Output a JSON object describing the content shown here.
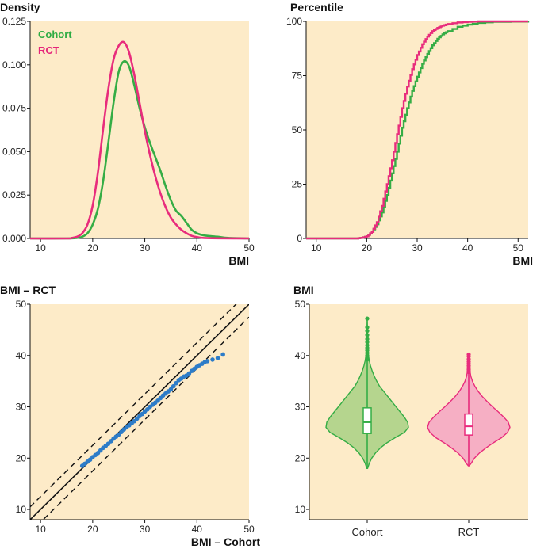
{
  "colors": {
    "cohort": "#35ad45",
    "rct": "#e82c7c",
    "panel_bg": "#fdebc8",
    "qq_points": "#2d7cc8",
    "axis": "#111111"
  },
  "chart_data": [
    {
      "type": "line",
      "title": "Density",
      "xlabel": "BMI",
      "xlim": [
        8,
        50
      ],
      "ylim": [
        0,
        0.125
      ],
      "xticks": [
        "10",
        "20",
        "30",
        "40",
        "50"
      ],
      "yticks": [
        "0.000",
        "0.025",
        "0.050",
        "0.075",
        "0.100",
        "0.125"
      ],
      "legend": [
        "Cohort",
        "RCT"
      ],
      "legend_position": "top-left",
      "series": [
        {
          "name": "Cohort",
          "x": [
            8,
            15,
            17,
            18,
            19,
            20,
            21,
            22,
            23,
            24,
            25,
            26,
            27,
            28,
            29,
            30,
            31,
            32,
            33,
            34,
            35,
            36,
            37,
            38,
            39,
            40,
            41,
            42,
            44,
            46,
            50
          ],
          "y": [
            0,
            0,
            0.0003,
            0.001,
            0.003,
            0.008,
            0.017,
            0.033,
            0.055,
            0.078,
            0.096,
            0.102,
            0.099,
            0.088,
            0.075,
            0.064,
            0.055,
            0.047,
            0.039,
            0.03,
            0.022,
            0.016,
            0.013,
            0.009,
            0.005,
            0.003,
            0.002,
            0.0015,
            0.001,
            0.0003,
            0
          ]
        },
        {
          "name": "RCT",
          "x": [
            8,
            15,
            16,
            17,
            18,
            19,
            20,
            21,
            22,
            23,
            24,
            25,
            26,
            27,
            28,
            29,
            30,
            31,
            32,
            33,
            34,
            35,
            36,
            37,
            38,
            39,
            40,
            42,
            50
          ],
          "y": [
            0,
            0,
            0.0003,
            0.001,
            0.003,
            0.008,
            0.019,
            0.038,
            0.063,
            0.086,
            0.103,
            0.111,
            0.113,
            0.107,
            0.094,
            0.078,
            0.062,
            0.048,
            0.036,
            0.026,
            0.018,
            0.012,
            0.008,
            0.005,
            0.003,
            0.0015,
            0.0008,
            0.0002,
            0
          ]
        }
      ]
    },
    {
      "type": "line",
      "title": "Percentile",
      "xlabel": "BMI",
      "xlim": [
        8,
        52
      ],
      "ylim": [
        0,
        100
      ],
      "xticks": [
        "10",
        "20",
        "30",
        "40",
        "50"
      ],
      "yticks": [
        "0",
        "25",
        "50",
        "75",
        "100"
      ],
      "series": [
        {
          "name": "Cohort",
          "x": [
            8,
            18,
            19,
            20,
            21,
            22,
            23,
            24,
            25,
            26,
            27,
            28,
            29,
            30,
            31,
            32,
            33,
            34,
            35,
            36,
            38,
            40,
            42,
            45,
            52
          ],
          "y": [
            0,
            0,
            0.3,
            1,
            3,
            6.5,
            12,
            20,
            30,
            40,
            51,
            60,
            68,
            74.5,
            80.5,
            85,
            89,
            92,
            94,
            95.5,
            97.5,
            98.5,
            99.3,
            99.8,
            100
          ]
        },
        {
          "name": "RCT",
          "x": [
            8,
            18,
            19,
            20,
            21,
            22,
            23,
            24,
            25,
            26,
            27,
            28,
            29,
            30,
            31,
            32,
            33,
            34,
            35,
            36,
            38,
            40,
            42,
            52
          ],
          "y": [
            0,
            0,
            0.3,
            1,
            3,
            7.5,
            15,
            25,
            36,
            48,
            60,
            70,
            78,
            84.5,
            89.5,
            93,
            95.5,
            97,
            98,
            98.8,
            99.5,
            99.8,
            100,
            100
          ]
        }
      ]
    },
    {
      "type": "scatter",
      "title": "BMI – RCT",
      "xlabel": "BMI – Cohort",
      "xlim": [
        8,
        50
      ],
      "ylim": [
        8,
        50
      ],
      "xticks": [
        "10",
        "20",
        "30",
        "40",
        "50"
      ],
      "yticks": [
        "10",
        "20",
        "30",
        "40",
        "50"
      ],
      "reference_lines": [
        {
          "style": "solid",
          "intercept": 0
        },
        {
          "style": "dashed",
          "intercept": 2.5
        },
        {
          "style": "dashed",
          "intercept": -2.5
        }
      ],
      "x": [
        18,
        18.5,
        19,
        19.5,
        20,
        20.5,
        21,
        21.5,
        22,
        22.5,
        23,
        23.5,
        24,
        24.5,
        25,
        25.5,
        26,
        26.5,
        27,
        27.5,
        28,
        28.5,
        29,
        29.5,
        30,
        30.5,
        31,
        31.5,
        32,
        32.5,
        33,
        33.5,
        34,
        34.5,
        35,
        35.5,
        36,
        36.5,
        37,
        37.5,
        38,
        38.5,
        39,
        39.5,
        40,
        40.5,
        41,
        41.5,
        42,
        43,
        44,
        45
      ],
      "y": [
        18.5,
        18.9,
        19.3,
        19.7,
        20.2,
        20.6,
        21,
        21.5,
        22,
        22.4,
        22.8,
        23.3,
        23.8,
        24.2,
        24.6,
        25.1,
        25.6,
        26,
        26.4,
        26.8,
        27.2,
        27.7,
        28.2,
        28.6,
        29.1,
        29.5,
        30,
        30.4,
        30.8,
        31.2,
        31.7,
        32.2,
        32.6,
        33,
        33.4,
        34,
        34.6,
        35.2,
        35.5,
        35.9,
        36.1,
        36.5,
        37,
        37.4,
        37.8,
        38.1,
        38.4,
        38.7,
        38.9,
        39.2,
        39.5,
        40.2
      ]
    },
    {
      "type": "violin",
      "title": "BMI",
      "categories": [
        "Cohort",
        "RCT"
      ],
      "ylim": [
        8,
        50
      ],
      "yticks": [
        "10",
        "20",
        "30",
        "40",
        "50"
      ],
      "series": [
        {
          "name": "Cohort",
          "min": 18,
          "q1": 24.8,
          "median": 27,
          "q3": 29.8,
          "upper_whisker": 38.8,
          "outlier_max": 47.2,
          "outliers": [
            39.2,
            39.6,
            40,
            40.5,
            41,
            41.5,
            42,
            42.6,
            43.2,
            44,
            44.8,
            45.5,
            47.2
          ],
          "density_y": [
            18,
            19,
            20,
            21,
            22,
            23,
            24,
            25,
            26,
            27,
            28,
            29,
            30,
            31,
            32,
            33,
            34,
            35,
            36,
            37,
            38,
            39,
            40,
            41,
            42,
            43,
            44,
            45,
            46,
            47
          ],
          "density_w": [
            0.01,
            0.05,
            0.11,
            0.2,
            0.32,
            0.48,
            0.68,
            0.9,
            1,
            0.98,
            0.9,
            0.8,
            0.7,
            0.6,
            0.5,
            0.4,
            0.3,
            0.23,
            0.17,
            0.12,
            0.08,
            0.05,
            0.03,
            0.02,
            0.015,
            0.01,
            0.008,
            0.006,
            0.004,
            0.002
          ]
        },
        {
          "name": "RCT",
          "min": 18.5,
          "q1": 24.5,
          "median": 26.2,
          "q3": 28.6,
          "upper_whisker": 36.5,
          "outlier_max": 40.2,
          "outliers": [
            36.8,
            37,
            37.3,
            37.6,
            38,
            38.4,
            38.8,
            39.3,
            39.8,
            40.2
          ],
          "density_y": [
            18.5,
            19,
            20,
            21,
            22,
            23,
            24,
            25,
            26,
            27,
            28,
            29,
            30,
            31,
            32,
            33,
            34,
            35,
            36,
            37,
            38,
            39,
            40
          ],
          "density_w": [
            0.01,
            0.06,
            0.14,
            0.26,
            0.42,
            0.6,
            0.8,
            0.94,
            1,
            0.96,
            0.85,
            0.72,
            0.58,
            0.45,
            0.33,
            0.23,
            0.15,
            0.09,
            0.05,
            0.03,
            0.015,
            0.008,
            0.004
          ]
        }
      ]
    }
  ]
}
